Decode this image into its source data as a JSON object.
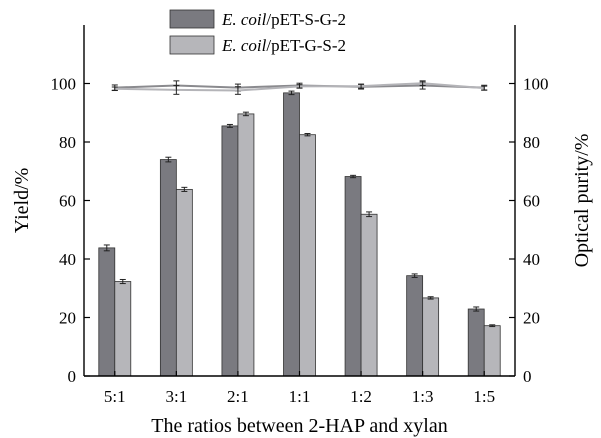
{
  "chart_data": {
    "type": "bar",
    "xlabel": "The ratios between 2-HAP and xylan",
    "ylabel_left": "Yield/%",
    "ylabel_right": "Optical purity/%",
    "categories": [
      "5:1",
      "3:1",
      "2:1",
      "1:1",
      "1:2",
      "1:3",
      "1:5"
    ],
    "ylim": [
      0,
      120
    ],
    "yticks": [
      0,
      20,
      40,
      60,
      80,
      100
    ],
    "series": [
      {
        "name": "pET-S-G-2",
        "legend_italic": "E. coil",
        "legend_rest": "/pET-S-G-2",
        "color": "#7a7a80",
        "values": [
          43.8,
          74.0,
          85.5,
          96.8,
          68.2,
          34.3,
          22.9
        ],
        "errors": [
          1.0,
          0.8,
          0.5,
          0.6,
          0.4,
          0.6,
          0.7
        ]
      },
      {
        "name": "pET-G-S-2",
        "legend_italic": "E. coil",
        "legend_rest": "/pET-G-S-2",
        "color": "#b6b6ba",
        "values": [
          32.3,
          63.8,
          89.6,
          82.5,
          55.3,
          26.7,
          17.2
        ],
        "errors": [
          0.7,
          0.7,
          0.6,
          0.4,
          0.8,
          0.4,
          0.3
        ]
      }
    ],
    "purity_lines": [
      {
        "series": "pET-S-G-2",
        "color": "#8a8a8e",
        "values": [
          98.6,
          99.3,
          98.6,
          99.3,
          98.9,
          99.3,
          98.6
        ],
        "errors": [
          0.9,
          1.6,
          1.2,
          0.8,
          0.8,
          1.2,
          0.8
        ]
      },
      {
        "series": "pET-G-S-2",
        "color": "#b4b4b8",
        "values": [
          98.2,
          97.8,
          97.6,
          99.0,
          99.1,
          100.1,
          98.4
        ],
        "errors": [
          0.6,
          1.5,
          1.3,
          0.6,
          0.7,
          0.8,
          0.7
        ]
      }
    ]
  }
}
